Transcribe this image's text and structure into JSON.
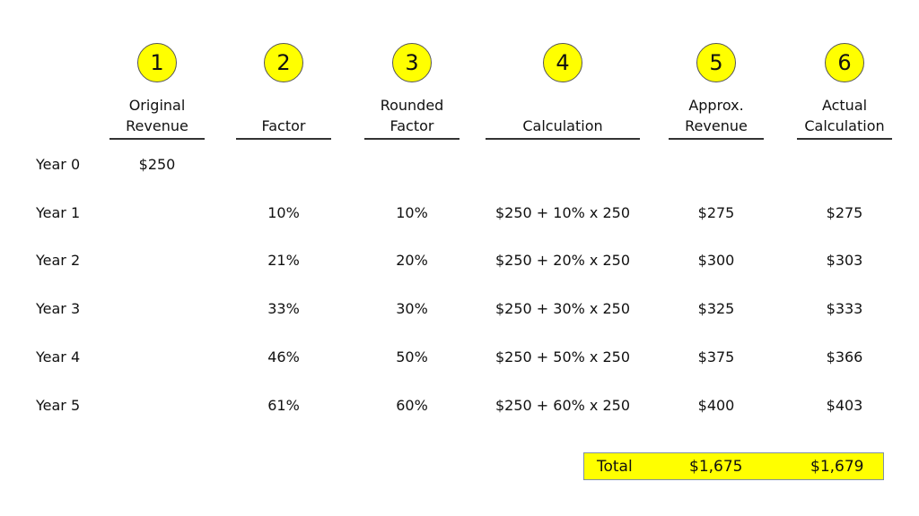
{
  "columns": [
    {
      "number": "1",
      "header": [
        "Original",
        "Revenue"
      ]
    },
    {
      "number": "2",
      "header": [
        "",
        "Factor"
      ]
    },
    {
      "number": "3",
      "header": [
        "Rounded",
        "Factor"
      ]
    },
    {
      "number": "4",
      "header": [
        "",
        "Calculation"
      ]
    },
    {
      "number": "5",
      "header": [
        "Approx.",
        "Revenue"
      ]
    },
    {
      "number": "6",
      "header": [
        "Actual",
        "Calculation"
      ]
    }
  ],
  "rows": [
    {
      "label": "Year 0",
      "cells": [
        "$250",
        "",
        "",
        "",
        "",
        ""
      ]
    },
    {
      "label": "Year 1",
      "cells": [
        "",
        "10%",
        "10%",
        "$250 + 10% x 250",
        "$275",
        "$275"
      ]
    },
    {
      "label": "Year 2",
      "cells": [
        "",
        "21%",
        "20%",
        "$250 + 20% x 250",
        "$300",
        "$303"
      ]
    },
    {
      "label": "Year 3",
      "cells": [
        "",
        "33%",
        "30%",
        "$250 + 30% x 250",
        "$325",
        "$333"
      ]
    },
    {
      "label": "Year 4",
      "cells": [
        "",
        "46%",
        "50%",
        "$250 + 50% x 250",
        "$375",
        "$366"
      ]
    },
    {
      "label": "Year 5",
      "cells": [
        "",
        "61%",
        "60%",
        "$250 + 60% x 250",
        "$400",
        "$403"
      ]
    }
  ],
  "total": {
    "label": "Total",
    "approx": "$1,675",
    "actual": "$1,679"
  },
  "colors": {
    "highlight": "#ffff00"
  }
}
